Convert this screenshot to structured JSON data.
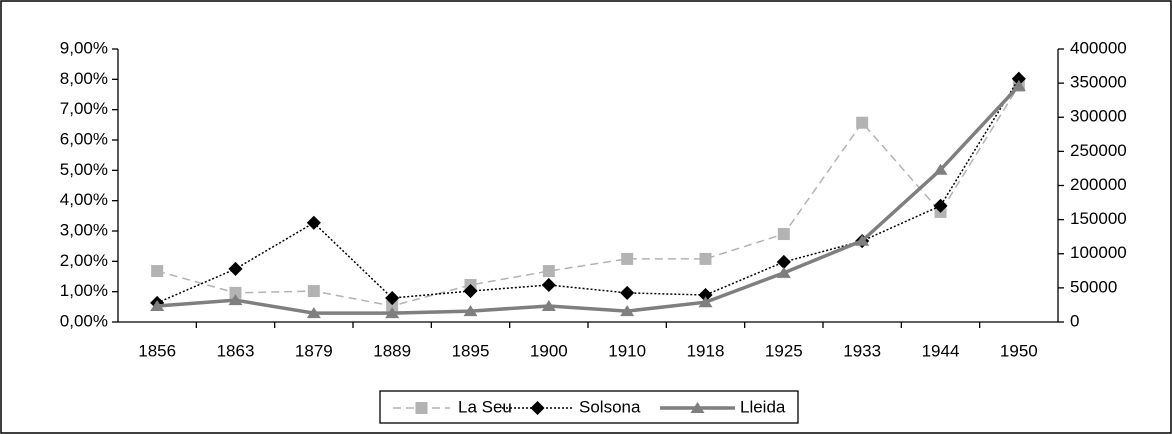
{
  "chart_data": {
    "type": "line",
    "categories": [
      "1856",
      "1863",
      "1879",
      "1889",
      "1895",
      "1900",
      "1910",
      "1918",
      "1925",
      "1933",
      "1944",
      "1950"
    ],
    "series": [
      {
        "name": "La Seu",
        "color": "#b3b3b3",
        "line_style": "dashed",
        "marker": "square",
        "values": [
          1.68,
          0.96,
          1.02,
          0.53,
          1.22,
          1.68,
          2.08,
          2.08,
          2.9,
          6.57,
          3.63,
          7.79
        ]
      },
      {
        "name": "Solsona",
        "color": "#000000",
        "line_style": "dotted",
        "marker": "diamond",
        "values": [
          0.63,
          1.75,
          3.27,
          0.79,
          1.02,
          1.22,
          0.96,
          0.89,
          1.98,
          2.67,
          3.83,
          8.02
        ]
      },
      {
        "name": "Lleida",
        "color": "#7f7f7f",
        "line_style": "solid",
        "marker": "triangle",
        "axis": "y2",
        "values": [
          23500,
          32000,
          13000,
          13000,
          16000,
          23500,
          16000,
          29000,
          72000,
          119000,
          223000,
          346000
        ]
      }
    ],
    "ylim": [
      0,
      9
    ],
    "yticks": [
      {
        "value": 0,
        "label": "0,00%"
      },
      {
        "value": 1,
        "label": "1,00%"
      },
      {
        "value": 2,
        "label": "2,00%"
      },
      {
        "value": 3,
        "label": "3,00%"
      },
      {
        "value": 4,
        "label": "4,00%"
      },
      {
        "value": 5,
        "label": "5,00%"
      },
      {
        "value": 6,
        "label": "6,00%"
      },
      {
        "value": 7,
        "label": "7,00%"
      },
      {
        "value": 8,
        "label": "8,00%"
      },
      {
        "value": 9,
        "label": "9,00%"
      }
    ],
    "y2lim": [
      0,
      400000
    ],
    "y2ticks": [
      0,
      50000,
      100000,
      150000,
      200000,
      250000,
      300000,
      350000,
      400000
    ],
    "legend": "bottom"
  }
}
